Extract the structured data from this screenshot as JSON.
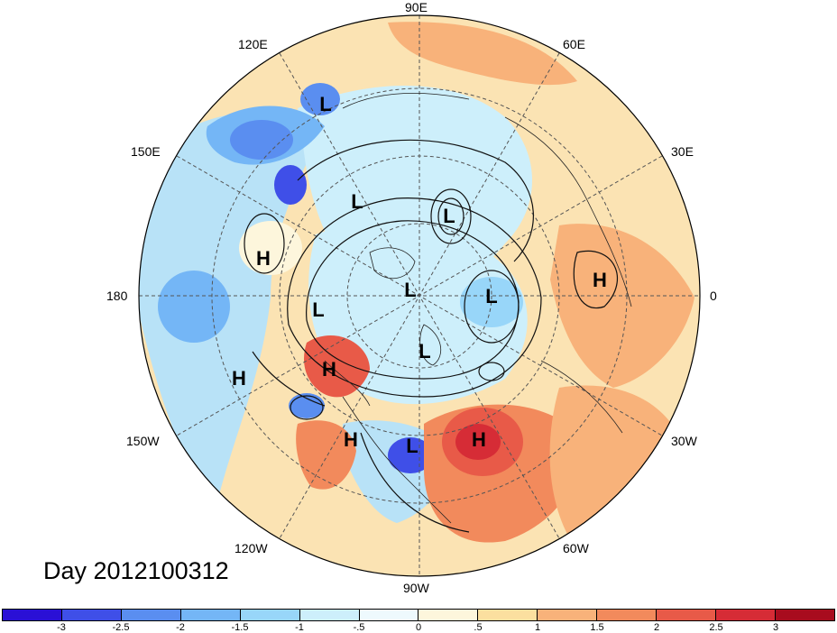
{
  "map": {
    "projection": "north-polar-stereographic",
    "longitude_labels": {
      "lon_90e": "90E",
      "lon_60e": "60E",
      "lon_30e": "30E",
      "lon_0": "0",
      "lon_30w": "30W",
      "lon_60w": "60W",
      "lon_90w": "90W",
      "lon_120w": "120W",
      "lon_150w": "150W",
      "lon_180": "180",
      "lon_150e": "150E",
      "lon_120e": "120E"
    },
    "pressure_centers": [
      {
        "id": "l1",
        "type": "L"
      },
      {
        "id": "l2",
        "type": "L"
      },
      {
        "id": "l3",
        "type": "L"
      },
      {
        "id": "l4",
        "type": "L"
      },
      {
        "id": "l5",
        "type": "L"
      },
      {
        "id": "l6",
        "type": "L"
      },
      {
        "id": "l7",
        "type": "L"
      },
      {
        "id": "l8",
        "type": "L"
      },
      {
        "id": "h1",
        "type": "H"
      },
      {
        "id": "h2",
        "type": "H"
      },
      {
        "id": "h3",
        "type": "H"
      },
      {
        "id": "h4",
        "type": "H"
      },
      {
        "id": "h5",
        "type": "H"
      },
      {
        "id": "h6",
        "type": "H"
      }
    ],
    "day_label": "Day 2012100312"
  },
  "colorbar": {
    "colors": [
      "#2a10d6",
      "#3f4fe8",
      "#5a8ef0",
      "#74b6f6",
      "#98d6f9",
      "#cdeffb",
      "#eef9fd",
      "#fdf6dc",
      "#fbdf9f",
      "#f8b27a",
      "#f28a5c",
      "#e85a48",
      "#d62c36",
      "#a80c1e"
    ],
    "ticks": [
      "-3",
      "-2.5",
      "-2",
      "-1.5",
      "-1",
      "-.5",
      "0",
      ".5",
      "1",
      "1.5",
      "2",
      "2.5",
      "3"
    ]
  }
}
